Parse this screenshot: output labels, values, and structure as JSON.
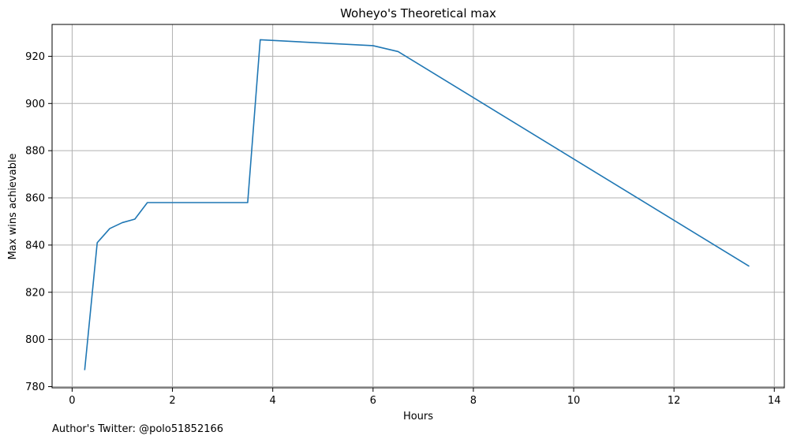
{
  "chart_data": {
    "type": "line",
    "title": "Woheyo's Theoretical max",
    "xlabel": "Hours",
    "ylabel": "Max wins achievable",
    "xlim": [
      -0.4,
      14.2
    ],
    "ylim": [
      779.5,
      933.5
    ],
    "xticks": [
      0,
      2,
      4,
      6,
      8,
      10,
      12,
      14
    ],
    "yticks": [
      780,
      800,
      820,
      840,
      860,
      880,
      900,
      920
    ],
    "grid": true,
    "series": [
      {
        "color": "#1f77b4",
        "x": [
          0.25,
          0.5,
          0.75,
          1.0,
          1.25,
          1.5,
          3.5,
          3.75,
          6.0,
          6.5,
          13.5
        ],
        "y": [
          787,
          841,
          847,
          849.5,
          851,
          858,
          858,
          927,
          924.5,
          922,
          831
        ]
      }
    ]
  },
  "footer": {
    "author_note": "Author's Twitter: @polo51852166"
  }
}
